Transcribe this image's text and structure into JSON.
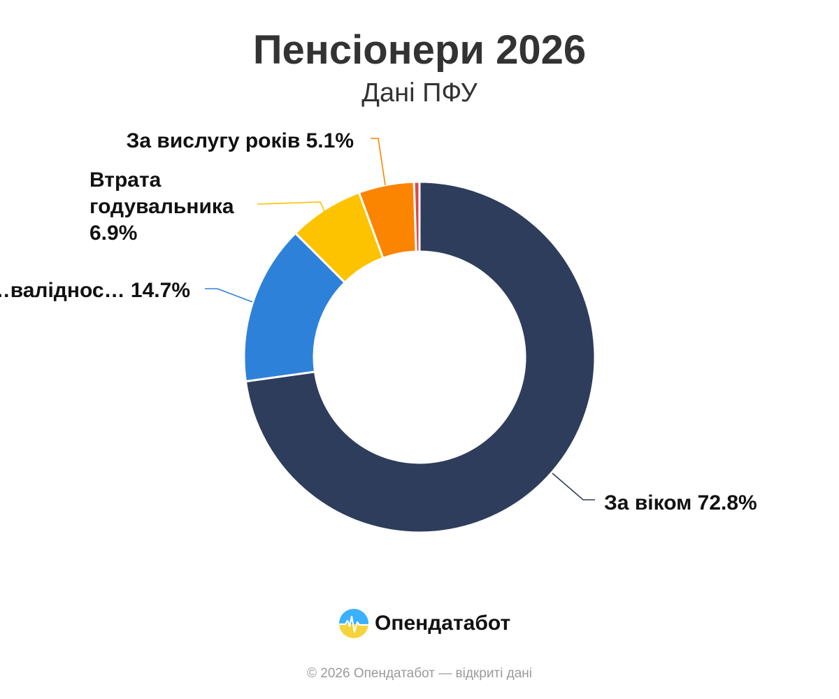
{
  "title": "Пенсіонери 2026",
  "subtitle": "Дані ПФУ",
  "brand": {
    "name": "Опендатабот",
    "logo_icon": "opendatabot-logo-icon"
  },
  "footer": "© 2026 Опендатабот — відкриті дані",
  "chart_data": {
    "type": "pie",
    "subtype": "donut",
    "legend": "none",
    "slices": [
      {
        "label": "За віком 72.8%",
        "value": 72.8,
        "color": "#2e3d5c",
        "label_side": "right"
      },
      {
        "label": "…валіднос… 14.7%",
        "value": 14.7,
        "color": "#2e81d9",
        "label_side": "left"
      },
      {
        "label_lines": [
          "Втрата",
          "годувальника",
          "6.9%"
        ],
        "value": 6.9,
        "color": "#fdc300",
        "label_side": "left"
      },
      {
        "label": "За вислугу років 5.1%",
        "value": 5.1,
        "color": "#fb8400",
        "label_side": "left"
      },
      {
        "label": "",
        "value": 0.5,
        "color": "#e04848",
        "label_side": "none"
      }
    ]
  }
}
